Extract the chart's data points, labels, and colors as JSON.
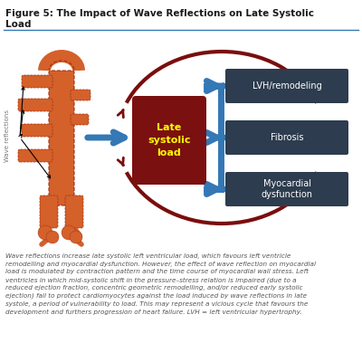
{
  "title": "Figure 5: The Impact of Wave Reflections on Late Systolic\nLoad",
  "title_fontsize": 7.5,
  "title_color": "#1a1a1a",
  "bg_color": "#ffffff",
  "center_box_color": "#7b1010",
  "center_box_text": "Late\nsystolic\nload",
  "center_box_text_color": "#ffff00",
  "right_box_color": "#2d3c4e",
  "right_box_texts": [
    "LVH/remodeling",
    "Fibrosis",
    "Myocardial\ndysfunction"
  ],
  "right_box_text_color": "#ffffff",
  "arrow_blue": "#3478b5",
  "arrow_dark_red": "#7b0d0d",
  "wave_label": "Wave reflections",
  "caption_text": "Wave reflections increase late systolic left ventricular load, which favours left ventricle\nremodelling and myocardial dysfunction. However, the effect of wave reflection on myocardial\nload is modulated by contraction pattern and the time course of myocardial wall stress. Left\nventricles in which mid-systolic shift in the pressure–stress relation is impaired (due to a\nreduced ejection fraction, concentric geometric remodelling, and/or reduced early systolic\nejection) fail to protect cardiomyocytes against the load induced by wave reflections in late\nsystole, a period of vulnerability to load. This may represent a vicious cycle that favours the\ndevelopment and furthers progression of heart failure. LVH = left ventricular hypertrophy.",
  "caption_fontsize": 5.2,
  "caption_color": "#555555",
  "divider_color": "#3478b5",
  "vessel_color": "#d4602a",
  "vessel_dark": "#a03010"
}
